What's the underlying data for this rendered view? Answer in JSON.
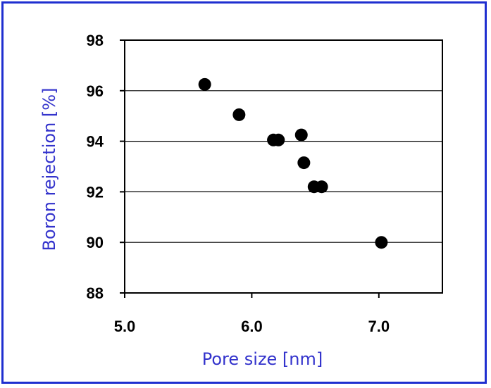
{
  "colors": {
    "frame": "#1f2fd0",
    "axis_title": "#3333cc",
    "marker": "#000000",
    "grid": "#000000"
  },
  "chart_data": {
    "type": "scatter",
    "xlabel": "Pore size [nm]",
    "ylabel": "Boron rejection [%]",
    "xlim": [
      5.0,
      7.5
    ],
    "ylim": [
      88,
      98
    ],
    "xticks": [
      5.0,
      6.0,
      7.0
    ],
    "xtick_labels": [
      "5.0",
      "6.0",
      "7.0"
    ],
    "yticks": [
      88,
      90,
      92,
      94,
      96,
      98
    ],
    "ytick_labels": [
      "88",
      "90",
      "92",
      "94",
      "96",
      "98"
    ],
    "grid": "horizontal",
    "series": [
      {
        "x": [
          5.63,
          5.9,
          6.17,
          6.21,
          6.39,
          6.41,
          6.49,
          6.55,
          7.02
        ],
        "y": [
          96.25,
          95.05,
          94.05,
          94.05,
          94.25,
          93.15,
          92.2,
          92.2,
          90.0
        ]
      }
    ]
  }
}
